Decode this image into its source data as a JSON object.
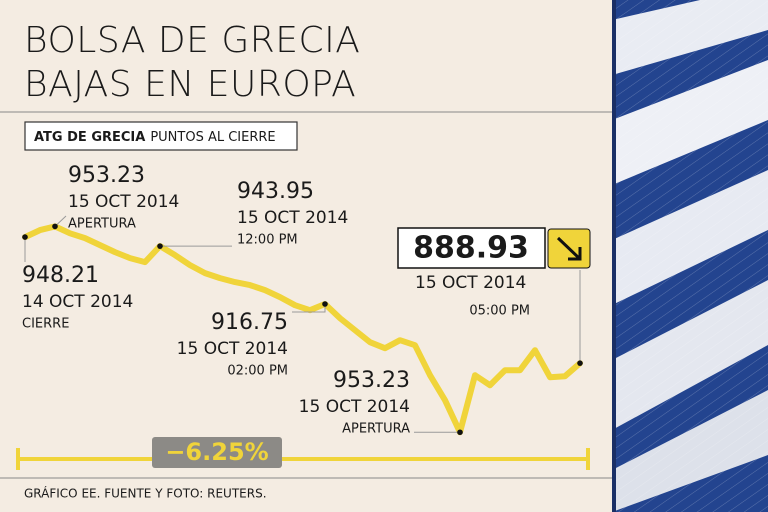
{
  "chart_data": {
    "type": "line",
    "title_lines": [
      "BOLSA DE GRECIA",
      "BAJAS EN EUROPA"
    ],
    "index_name": "ATG DE GRECIA",
    "index_unit": "PUNTOS AL CIERRE",
    "color": "#f0d43a",
    "values": [
      948.21,
      951.5,
      953.23,
      950.0,
      947.74,
      944.44,
      941.15,
      938.33,
      936.45,
      943.95,
      939.74,
      935.04,
      931.27,
      928.92,
      927.04,
      925.62,
      923.27,
      919.98,
      916.21,
      913.86,
      916.75,
      910.1,
      904.45,
      898.81,
      895.99,
      899.75,
      897.4,
      883.28,
      871.52,
      856.46,
      883.28,
      878.57,
      885.63,
      885.63,
      895.05,
      882.34,
      882.81,
      888.93
    ],
    "ylim": [
      850,
      960
    ],
    "annotations": [
      {
        "value": "948.21",
        "date": "14 OCT 2014",
        "note": "CIERRE"
      },
      {
        "value": "953.23",
        "date": "15 OCT 2014",
        "note": "APERTURA"
      },
      {
        "value": "943.95",
        "date": "15 OCT 2014",
        "note": "12:00 PM"
      },
      {
        "value": "916.75",
        "date": "15 OCT 2014",
        "note": "02:00 PM"
      },
      {
        "value": "953.23",
        "date": "15 OCT 2014",
        "note": "APERTURA"
      },
      {
        "value": "888.93",
        "date": "15 OCT 2014",
        "note": "05:00 PM"
      }
    ],
    "change": "−6.25%",
    "source": "GRÁFICO EE. FUENTE Y FOTO: REUTERS."
  }
}
